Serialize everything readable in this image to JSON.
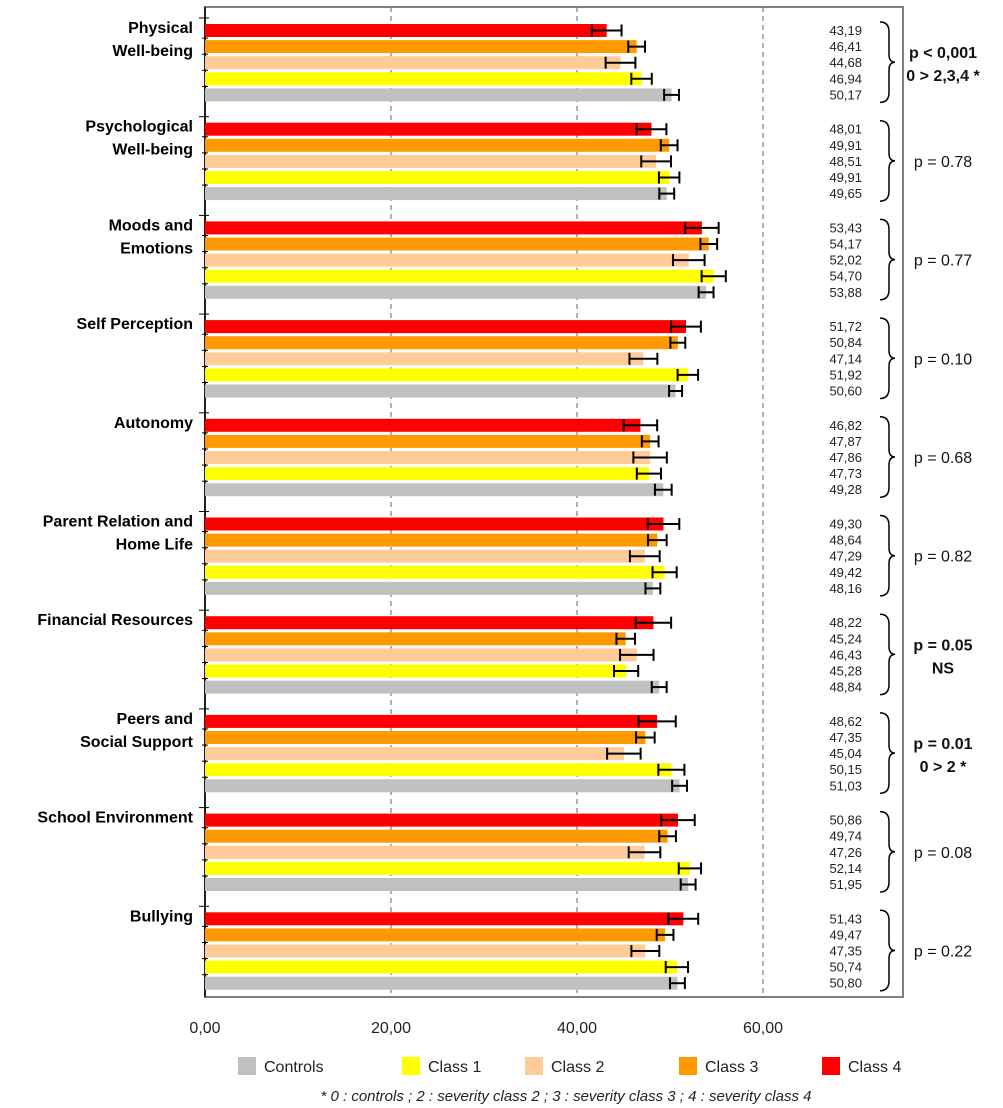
{
  "chart_data": {
    "type": "bar",
    "orientation": "horizontal",
    "xlim": [
      0,
      75
    ],
    "x_ticks": [
      "0,00",
      "20,00",
      "40,00",
      "60,00"
    ],
    "x_tick_values": [
      0,
      20,
      40,
      60
    ],
    "series": [
      {
        "name": "Class 4",
        "color": "#ff0000"
      },
      {
        "name": "Class 3",
        "color": "#ff9900"
      },
      {
        "name": "Class 2",
        "color": "#ffcc99"
      },
      {
        "name": "Class 1",
        "color": "#ffff00"
      },
      {
        "name": "Controls",
        "color": "#c0c0c0"
      }
    ],
    "legend_order": [
      "Controls",
      "Class 1",
      "Class 2",
      "Class 3",
      "Class 4"
    ],
    "legend_placement": "bottom",
    "groups": [
      {
        "label": [
          "Physical",
          "Well-being"
        ],
        "values": [
          43.19,
          46.41,
          44.68,
          46.94,
          50.17
        ],
        "value_labels": [
          "43,19",
          "46,41",
          "44,68",
          "46,94",
          "50,17"
        ],
        "errors": [
          1.6,
          0.9,
          1.6,
          1.1,
          0.8
        ],
        "pvalue": [
          "p < 0,001",
          "0 > 2,3,4 *"
        ],
        "pvalue_bold": true
      },
      {
        "label": [
          "Psychological",
          "Well-being"
        ],
        "values": [
          48.01,
          49.91,
          48.51,
          49.91,
          49.65
        ],
        "value_labels": [
          "48,01",
          "49,91",
          "48,51",
          "49,91",
          "49,65"
        ],
        "errors": [
          1.6,
          0.9,
          1.6,
          1.1,
          0.8
        ],
        "pvalue": [
          "p = 0.78"
        ],
        "pvalue_bold": false
      },
      {
        "label": [
          "Moods and",
          "Emotions"
        ],
        "values": [
          53.43,
          54.17,
          52.02,
          54.7,
          53.88
        ],
        "value_labels": [
          "53,43",
          "54,17",
          "52,02",
          "54,70",
          "53,88"
        ],
        "errors": [
          1.8,
          0.9,
          1.7,
          1.3,
          0.8
        ],
        "pvalue": [
          "p = 0.77"
        ],
        "pvalue_bold": false
      },
      {
        "label": [
          "Self Perception"
        ],
        "values": [
          51.72,
          50.84,
          47.14,
          51.92,
          50.6
        ],
        "value_labels": [
          "51,72",
          "50,84",
          "47,14",
          "51,92",
          "50,60"
        ],
        "errors": [
          1.6,
          0.8,
          1.5,
          1.1,
          0.7
        ],
        "pvalue": [
          "p = 0.10"
        ],
        "pvalue_bold": false
      },
      {
        "label": [
          "Autonomy"
        ],
        "values": [
          46.82,
          47.87,
          47.86,
          47.73,
          49.28
        ],
        "value_labels": [
          "46,82",
          "47,87",
          "47,86",
          "47,73",
          "49,28"
        ],
        "errors": [
          1.8,
          0.9,
          1.8,
          1.3,
          0.9
        ],
        "pvalue": [
          "p = 0.68"
        ],
        "pvalue_bold": false
      },
      {
        "label": [
          "Parent Relation and",
          "Home Life"
        ],
        "values": [
          49.3,
          48.64,
          47.29,
          49.42,
          48.16
        ],
        "value_labels": [
          "49,30",
          "48,64",
          "47,29",
          "49,42",
          "48,16"
        ],
        "errors": [
          1.7,
          1.0,
          1.6,
          1.3,
          0.8
        ],
        "pvalue": [
          "p = 0.82"
        ],
        "pvalue_bold": false
      },
      {
        "label": [
          "Financial Resources"
        ],
        "values": [
          48.22,
          45.24,
          46.43,
          45.28,
          48.84
        ],
        "value_labels": [
          "48,22",
          "45,24",
          "46,43",
          "45,28",
          "48,84"
        ],
        "errors": [
          1.9,
          1.0,
          1.8,
          1.3,
          0.8
        ],
        "pvalue": [
          "p = 0.05",
          "NS"
        ],
        "pvalue_bold": true
      },
      {
        "label": [
          "Peers and",
          "Social Support"
        ],
        "values": [
          48.62,
          47.35,
          45.04,
          50.15,
          51.03
        ],
        "value_labels": [
          "48,62",
          "47,35",
          "45,04",
          "50,15",
          "51,03"
        ],
        "errors": [
          2.0,
          1.0,
          1.8,
          1.4,
          0.8
        ],
        "pvalue": [
          "p = 0.01",
          "0 > 2 *"
        ],
        "pvalue_bold": true
      },
      {
        "label": [
          "School  Environment"
        ],
        "values": [
          50.86,
          49.74,
          47.26,
          52.14,
          51.95
        ],
        "value_labels": [
          "50,86",
          "49,74",
          "47,26",
          "52,14",
          "51,95"
        ],
        "errors": [
          1.8,
          0.9,
          1.7,
          1.2,
          0.8
        ],
        "pvalue": [
          "p = 0.08"
        ],
        "pvalue_bold": false
      },
      {
        "label": [
          "Bullying"
        ],
        "values": [
          51.43,
          49.47,
          47.35,
          50.74,
          50.8
        ],
        "value_labels": [
          "51,43",
          "49,47",
          "47,35",
          "50,74",
          "50,80"
        ],
        "errors": [
          1.6,
          0.9,
          1.5,
          1.2,
          0.8
        ],
        "pvalue": [
          "p = 0.22"
        ],
        "pvalue_bold": false
      }
    ],
    "footnote": "* 0 : controls ; 2 : severity class 2 ; 3 : severity class 3 ; 4 : severity class 4"
  }
}
